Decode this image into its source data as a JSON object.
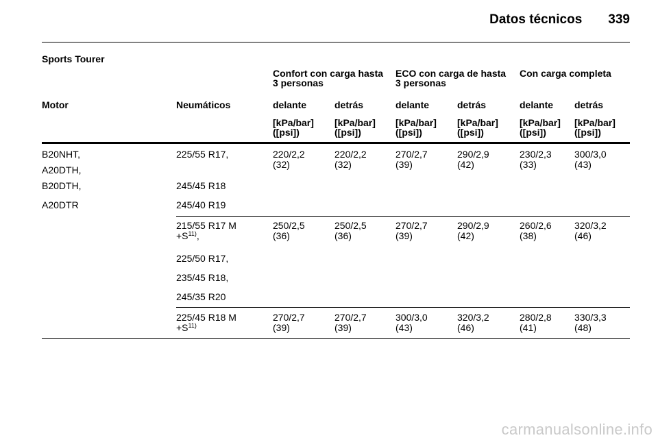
{
  "header": {
    "title": "Datos técnicos",
    "page_number": "339"
  },
  "section_title": "Sports Tourer",
  "table": {
    "group_headers": [
      {
        "line1": "Confort con carga hasta",
        "line2": "3 personas"
      },
      {
        "line1": "ECO con carga de hasta",
        "line2": "3 personas"
      },
      {
        "line1": "Con carga completa",
        "line2": ""
      }
    ],
    "columns": [
      "Motor",
      "Neumáticos",
      "delante",
      "detrás",
      "delante",
      "detrás",
      "delante",
      "detrás"
    ],
    "units": {
      "line1": "[kPa/bar]",
      "line2": "([psi])"
    },
    "motors": [
      "B20NHT,",
      "A20DTH,",
      "B20DTH,",
      "A20DTR"
    ],
    "groups": [
      {
        "tyres": [
          {
            "text": "225/55 R17,",
            "sup": "",
            "suffix": ""
          },
          {
            "text": "245/45 R18",
            "sup": "",
            "suffix": ""
          },
          {
            "text": "245/40 R19",
            "sup": "",
            "suffix": ""
          }
        ],
        "pressures": [
          [
            "220/2,2",
            "(32)"
          ],
          [
            "220/2,2",
            "(32)"
          ],
          [
            "270/2,7",
            "(39)"
          ],
          [
            "290/2,9",
            "(42)"
          ],
          [
            "230/2,3",
            "(33)"
          ],
          [
            "300/3,0",
            "(43)"
          ]
        ]
      },
      {
        "tyres": [
          {
            "text": "215/55 R17 M",
            "text2": "+S",
            "sup": "11)",
            "suffix": ","
          },
          {
            "text": "225/50 R17,",
            "sup": "",
            "suffix": ""
          },
          {
            "text": "235/45 R18,",
            "sup": "",
            "suffix": ""
          },
          {
            "text": "245/35 R20",
            "sup": "",
            "suffix": ""
          }
        ],
        "pressures": [
          [
            "250/2,5",
            "(36)"
          ],
          [
            "250/2,5",
            "(36)"
          ],
          [
            "270/2,7",
            "(39)"
          ],
          [
            "290/2,9",
            "(42)"
          ],
          [
            "260/2,6",
            "(38)"
          ],
          [
            "320/3,2",
            "(46)"
          ]
        ]
      },
      {
        "tyres": [
          {
            "text": "225/45 R18 M",
            "text2": "+S",
            "sup": "11)",
            "suffix": ""
          }
        ],
        "pressures": [
          [
            "270/2,7",
            "(39)"
          ],
          [
            "270/2,7",
            "(39)"
          ],
          [
            "300/3,0",
            "(43)"
          ],
          [
            "320/3,2",
            "(46)"
          ],
          [
            "280/2,8",
            "(41)"
          ],
          [
            "330/3,3",
            "(48)"
          ]
        ]
      }
    ]
  },
  "watermark": "carmanualsonline.info"
}
